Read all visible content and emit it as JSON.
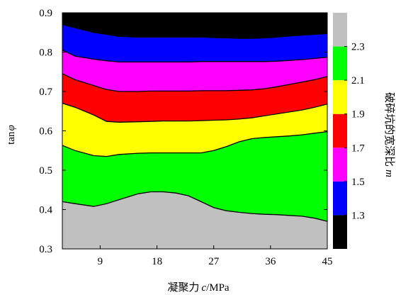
{
  "chart_data": {
    "type": "area",
    "title": "",
    "xlabel": {
      "cn": "凝聚力",
      "var": "c",
      "unit": "/MPa"
    },
    "ylabel": {
      "fn": "tan",
      "var": "φ"
    },
    "colorbar_label": {
      "cn": "破碎坑的宽深比",
      "var": "m"
    },
    "xlim": [
      3,
      45
    ],
    "ylim": [
      0.3,
      0.9
    ],
    "x_ticks": [
      9,
      18,
      27,
      36,
      45
    ],
    "y_ticks": [
      "0.3",
      "0.4",
      "0.5",
      "0.6",
      "0.7",
      "0.8",
      "0.9"
    ],
    "x": [
      3,
      5,
      8,
      10,
      12,
      15,
      17,
      19,
      21,
      23,
      25,
      27,
      29,
      31,
      33,
      35,
      37,
      39,
      41,
      43,
      45
    ],
    "boundaries": [
      {
        "between": "1.3-1.5",
        "y": [
          0.87,
          0.862,
          0.85,
          0.845,
          0.84,
          0.838,
          0.838,
          0.838,
          0.838,
          0.838,
          0.838,
          0.837,
          0.836,
          0.835,
          0.835,
          0.836,
          0.838,
          0.841,
          0.843,
          0.845,
          0.847
        ]
      },
      {
        "between": "1.5-1.7",
        "y": [
          0.805,
          0.79,
          0.782,
          0.778,
          0.775,
          0.775,
          0.775,
          0.775,
          0.775,
          0.775,
          0.776,
          0.776,
          0.776,
          0.776,
          0.776,
          0.776,
          0.777,
          0.779,
          0.781,
          0.784,
          0.787
        ]
      },
      {
        "between": "1.7-1.9",
        "y": [
          0.745,
          0.73,
          0.715,
          0.705,
          0.7,
          0.7,
          0.701,
          0.701,
          0.701,
          0.701,
          0.702,
          0.702,
          0.702,
          0.703,
          0.704,
          0.707,
          0.712,
          0.718,
          0.724,
          0.73,
          0.738
        ]
      },
      {
        "between": "1.9-2.1",
        "y": [
          0.67,
          0.66,
          0.64,
          0.624,
          0.622,
          0.623,
          0.624,
          0.625,
          0.625,
          0.625,
          0.626,
          0.627,
          0.628,
          0.63,
          0.633,
          0.638,
          0.643,
          0.648,
          0.653,
          0.66,
          0.668
        ]
      },
      {
        "between": "2.1-2.3",
        "y": [
          0.563,
          0.55,
          0.537,
          0.535,
          0.54,
          0.543,
          0.544,
          0.544,
          0.544,
          0.544,
          0.544,
          0.55,
          0.56,
          0.572,
          0.58,
          0.583,
          0.585,
          0.587,
          0.59,
          0.594,
          0.598
        ]
      },
      {
        "between": "2.3+",
        "y": [
          0.42,
          0.415,
          0.408,
          0.415,
          0.425,
          0.44,
          0.445,
          0.445,
          0.442,
          0.435,
          0.42,
          0.405,
          0.397,
          0.393,
          0.39,
          0.388,
          0.387,
          0.385,
          0.383,
          0.378,
          0.37
        ]
      }
    ],
    "bands": [
      {
        "label": "",
        "color": "#000000"
      },
      {
        "label": "1.3",
        "color": "#0000ff"
      },
      {
        "label": "1.5",
        "color": "#ff00ff"
      },
      {
        "label": "1.7",
        "color": "#ff0000"
      },
      {
        "label": "1.9",
        "color": "#ffff00"
      },
      {
        "label": "2.1",
        "color": "#00ff00"
      },
      {
        "label": "2.3",
        "color": "#c0c0c0"
      }
    ]
  }
}
